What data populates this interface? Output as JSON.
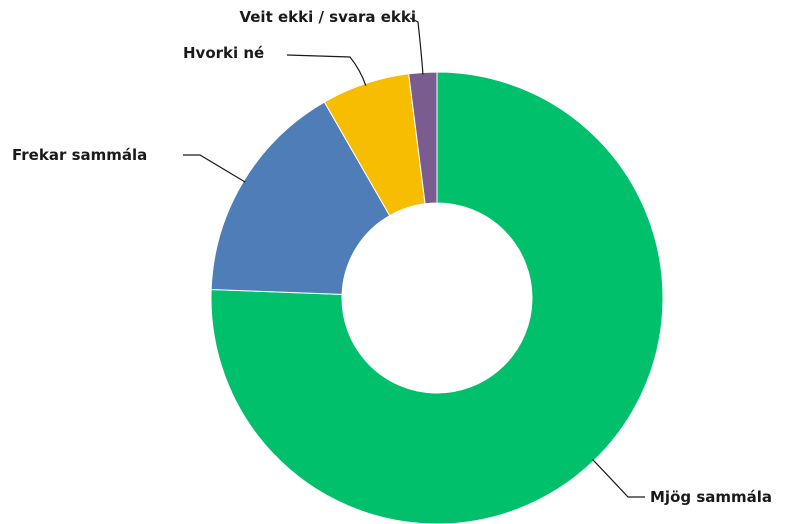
{
  "chart_data": {
    "type": "donut",
    "categories": [
      "Mjög sammála",
      "Frekar sammála",
      "Hvorki né",
      "Veit ekki / svara ekki"
    ],
    "values": [
      75.6,
      16.1,
      6.3,
      2.0
    ],
    "colors": [
      "#00c06b",
      "#4e7db8",
      "#f7bd00",
      "#7a5c91"
    ]
  }
}
